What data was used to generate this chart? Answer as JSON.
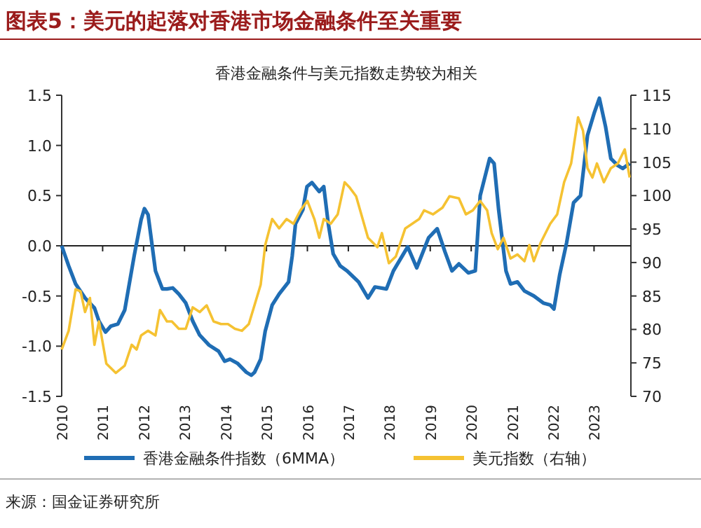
{
  "chart_data": {
    "type": "line",
    "title": "图表5：美元的起落对香港市场金融条件至关重要",
    "subtitle": "香港金融条件与美元指数走势较为相关",
    "annotations": [
      "来源：国金证券研究所"
    ],
    "xlim": [
      2010,
      2023.9
    ],
    "xticks": [
      2010,
      2011,
      2012,
      2013,
      2014,
      2015,
      2016,
      2017,
      2018,
      2019,
      2020,
      2021,
      2022,
      2023
    ],
    "ylim": [
      -1.5,
      1.5
    ],
    "yticks": [
      -1.5,
      {
        "value": -1,
        "label": "-1.0"
      },
      -0.5,
      {
        "value": 0,
        "label": "0.0"
      },
      0.5,
      {
        "value": 1,
        "label": "1.0"
      },
      1.5
    ],
    "y2lim": [
      70,
      115
    ],
    "y2ticks": [
      70,
      75,
      80,
      85,
      90,
      95,
      100,
      105,
      110,
      115
    ],
    "legend": "bottom",
    "series": [
      {
        "name": "香港金融条件指数（6MMA）",
        "color": "#1f6db4",
        "x": [
          2010.0,
          2010.17,
          2010.34,
          2010.57,
          2010.8,
          2010.91,
          2011.07,
          2011.2,
          2011.37,
          2011.54,
          2011.77,
          2011.94,
          2012.02,
          2012.11,
          2012.29,
          2012.46,
          2012.57,
          2012.71,
          2012.86,
          2013.03,
          2013.2,
          2013.37,
          2013.6,
          2013.83,
          2013.98,
          2014.11,
          2014.29,
          2014.51,
          2014.63,
          2014.71,
          2014.86,
          2014.97,
          2015.14,
          2015.31,
          2015.54,
          2015.63,
          2015.71,
          2015.89,
          2015.99,
          2016.11,
          2016.29,
          2016.4,
          2016.51,
          2016.63,
          2016.8,
          2016.97,
          2017.25,
          2017.48,
          2017.65,
          2017.93,
          2018.1,
          2018.45,
          2018.67,
          2018.96,
          2019.17,
          2019.36,
          2019.53,
          2019.7,
          2019.93,
          2020.1,
          2020.22,
          2020.45,
          2020.56,
          2020.67,
          2020.85,
          2020.96,
          2021.13,
          2021.3,
          2021.53,
          2021.76,
          2021.93,
          2022.02,
          2022.16,
          2022.33,
          2022.5,
          2022.67,
          2022.84,
          2023.01,
          2023.13,
          2023.28,
          2023.41,
          2023.58,
          2023.7,
          2023.87
        ],
        "values": [
          0.0,
          -0.2,
          -0.38,
          -0.52,
          -0.62,
          -0.75,
          -0.86,
          -0.8,
          -0.78,
          -0.64,
          -0.1,
          0.26,
          0.37,
          0.31,
          -0.25,
          -0.43,
          -0.43,
          -0.42,
          -0.48,
          -0.57,
          -0.75,
          -0.89,
          -0.99,
          -1.05,
          -1.15,
          -1.13,
          -1.17,
          -1.26,
          -1.29,
          -1.26,
          -1.13,
          -0.85,
          -0.59,
          -0.48,
          -0.36,
          -0.1,
          0.22,
          0.36,
          0.59,
          0.63,
          0.54,
          0.59,
          0.22,
          -0.08,
          -0.2,
          -0.25,
          -0.36,
          -0.52,
          -0.41,
          -0.43,
          -0.25,
          -0.01,
          -0.22,
          0.08,
          0.17,
          -0.06,
          -0.25,
          -0.18,
          -0.27,
          -0.25,
          0.5,
          0.87,
          0.82,
          0.36,
          -0.25,
          -0.38,
          -0.36,
          -0.45,
          -0.5,
          -0.57,
          -0.59,
          -0.63,
          -0.29,
          0.03,
          0.43,
          0.5,
          1.1,
          1.33,
          1.47,
          1.19,
          0.87,
          0.8,
          0.77,
          0.82
        ]
      },
      {
        "name": "美元指数（右轴）",
        "color": "#f5c232",
        "axis": "y2",
        "x": [
          2010.0,
          2010.17,
          2010.34,
          2010.46,
          2010.57,
          2010.69,
          2010.8,
          2010.91,
          2011.09,
          2011.32,
          2011.54,
          2011.71,
          2011.83,
          2011.94,
          2012.11,
          2012.29,
          2012.4,
          2012.57,
          2012.69,
          2012.86,
          2013.03,
          2013.2,
          2013.37,
          2013.54,
          2013.71,
          2013.89,
          2014.06,
          2014.23,
          2014.4,
          2014.57,
          2014.86,
          2014.97,
          2015.14,
          2015.31,
          2015.49,
          2015.66,
          2015.83,
          2016.0,
          2016.17,
          2016.29,
          2016.4,
          2016.57,
          2016.74,
          2016.91,
          2017.02,
          2017.19,
          2017.48,
          2017.71,
          2017.82,
          2017.99,
          2018.16,
          2018.39,
          2018.73,
          2018.85,
          2019.07,
          2019.3,
          2019.47,
          2019.7,
          2019.87,
          2020.04,
          2020.22,
          2020.39,
          2020.5,
          2020.65,
          2020.79,
          2020.96,
          2021.13,
          2021.3,
          2021.42,
          2021.53,
          2021.7,
          2021.93,
          2022.1,
          2022.27,
          2022.44,
          2022.61,
          2022.73,
          2022.84,
          2022.96,
          2023.07,
          2023.24,
          2023.41,
          2023.58,
          2023.75,
          2023.87
        ],
        "values": [
          77.0,
          79.8,
          86.0,
          85.7,
          82.6,
          84.7,
          77.7,
          81.2,
          74.9,
          73.5,
          74.6,
          77.7,
          77.0,
          79.1,
          79.8,
          79.1,
          82.9,
          81.2,
          81.2,
          80.1,
          80.1,
          83.3,
          82.6,
          83.6,
          81.2,
          80.8,
          80.8,
          80.1,
          79.8,
          80.8,
          86.7,
          92.6,
          96.5,
          95.1,
          96.5,
          95.8,
          97.8,
          99.2,
          96.5,
          93.7,
          96.5,
          95.8,
          97.2,
          102.0,
          101.3,
          99.9,
          93.7,
          92.3,
          94.4,
          89.9,
          90.9,
          95.1,
          96.5,
          97.8,
          97.2,
          98.2,
          99.9,
          99.6,
          97.2,
          97.8,
          99.2,
          97.8,
          94.4,
          92.0,
          93.7,
          90.6,
          91.2,
          90.2,
          92.6,
          90.2,
          93.0,
          95.8,
          97.2,
          102.0,
          104.8,
          111.7,
          109.7,
          104.1,
          102.7,
          104.8,
          102.0,
          104.1,
          104.8,
          106.9,
          102.7
        ]
      }
    ]
  }
}
